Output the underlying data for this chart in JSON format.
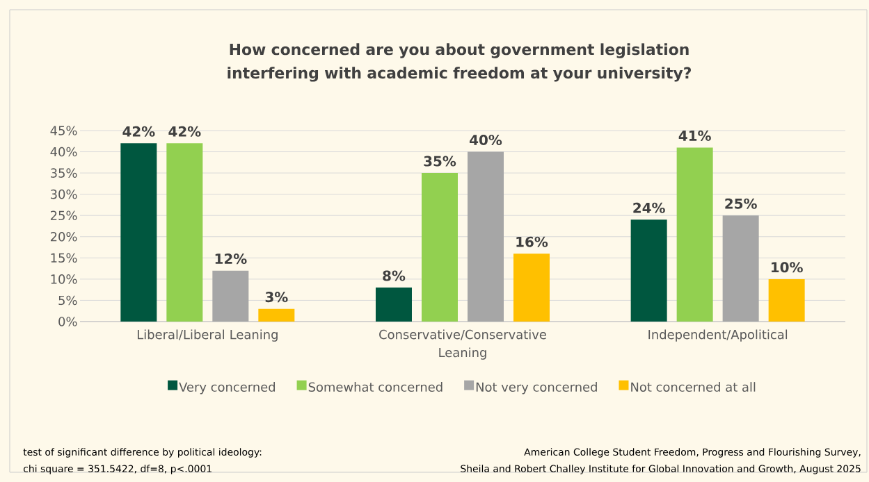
{
  "chart_data": {
    "type": "bar",
    "title": "How concerned are you about government legislation interfering with academic freedom at your university?",
    "categories": [
      "Liberal/Liberal Leaning",
      "Conservative/Conservative Leaning",
      "Independent/Apolitical"
    ],
    "series": [
      {
        "name": "Very concerned",
        "color": "#00573f",
        "values": [
          42,
          8,
          24
        ],
        "value_labels": [
          "42%",
          "8%",
          "24%"
        ]
      },
      {
        "name": "Somewhat concerned",
        "color": "#92d050",
        "values": [
          42,
          35,
          41
        ],
        "value_labels": [
          "42%",
          "35%",
          "41%"
        ]
      },
      {
        "name": "Not very concerned",
        "color": "#a6a6a6",
        "values": [
          12,
          40,
          25
        ],
        "value_labels": [
          "12%",
          "40%",
          "25%"
        ]
      },
      {
        "name": "Not concerned at all",
        "color": "#ffc000",
        "values": [
          3,
          16,
          10
        ],
        "value_labels": [
          "3%",
          "16%",
          "10%"
        ]
      }
    ],
    "ylim": [
      0,
      45
    ],
    "yticks": [
      {
        "value": 0,
        "label": "0%"
      },
      {
        "value": 5,
        "label": "5%"
      },
      {
        "value": 10,
        "label": "10%"
      },
      {
        "value": 15,
        "label": "15%"
      },
      {
        "value": 20,
        "label": "20%"
      },
      {
        "value": 25,
        "label": "25%"
      },
      {
        "value": 30,
        "label": "30%"
      },
      {
        "value": 35,
        "label": "35%"
      },
      {
        "value": 40,
        "label": "40%"
      },
      {
        "value": 45,
        "label": "45%"
      }
    ],
    "grid": "y",
    "legend": "bottom",
    "annotations": [
      "test of significant difference by political ideology:",
      "chi square = 351.5422, df=8, p<.0001",
      "American College Student Freedom, Progress and Flourishing Survey,",
      "Sheila and Robert Challey Institute for Global Innovation and Growth, August 2025"
    ]
  }
}
